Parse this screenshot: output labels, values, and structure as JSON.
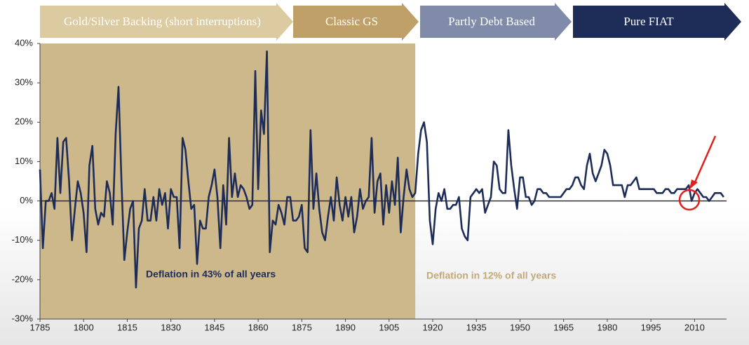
{
  "chart_data": {
    "type": "line",
    "banners": [
      {
        "text": "Gold/Silver Backing (short interruptions)",
        "color": "#dccaa0"
      },
      {
        "text": "Classic GS",
        "color": "#bfa068"
      },
      {
        "text": "Partly Debt Based",
        "color": "#7f8ba8"
      },
      {
        "text": "Pure FIAT",
        "color": "#1e2c58"
      }
    ],
    "regions": [
      {
        "from": 1785,
        "to": 1914,
        "color": "#cdb88c"
      }
    ],
    "annotations": [
      {
        "text": "Deflation in 43% of all years",
        "color": "#1e2c58"
      },
      {
        "text": "Deflation in 12% of all years",
        "color": "#c2a976"
      }
    ],
    "x": [
      1785,
      1786,
      1787,
      1788,
      1789,
      1790,
      1791,
      1792,
      1793,
      1794,
      1795,
      1796,
      1797,
      1798,
      1799,
      1800,
      1801,
      1802,
      1803,
      1804,
      1805,
      1806,
      1807,
      1808,
      1809,
      1810,
      1811,
      1812,
      1813,
      1814,
      1815,
      1816,
      1817,
      1818,
      1819,
      1820,
      1821,
      1822,
      1823,
      1824,
      1825,
      1826,
      1827,
      1828,
      1829,
      1830,
      1831,
      1832,
      1833,
      1834,
      1835,
      1836,
      1837,
      1838,
      1839,
      1840,
      1841,
      1842,
      1843,
      1844,
      1845,
      1846,
      1847,
      1848,
      1849,
      1850,
      1851,
      1852,
      1853,
      1854,
      1855,
      1856,
      1857,
      1858,
      1859,
      1860,
      1861,
      1862,
      1863,
      1864,
      1865,
      1866,
      1867,
      1868,
      1869,
      1870,
      1871,
      1872,
      1873,
      1874,
      1875,
      1876,
      1877,
      1878,
      1879,
      1880,
      1881,
      1882,
      1883,
      1884,
      1885,
      1886,
      1887,
      1888,
      1889,
      1890,
      1891,
      1892,
      1893,
      1894,
      1895,
      1896,
      1897,
      1898,
      1899,
      1900,
      1901,
      1902,
      1903,
      1904,
      1905,
      1906,
      1907,
      1908,
      1909,
      1910,
      1911,
      1912,
      1913,
      1914,
      1915,
      1916,
      1917,
      1918,
      1919,
      1920,
      1921,
      1922,
      1923,
      1924,
      1925,
      1926,
      1927,
      1928,
      1929,
      1930,
      1931,
      1932,
      1933,
      1934,
      1935,
      1936,
      1937,
      1938,
      1939,
      1940,
      1941,
      1942,
      1943,
      1944,
      1945,
      1946,
      1947,
      1948,
      1949,
      1950,
      1951,
      1952,
      1953,
      1954,
      1955,
      1956,
      1957,
      1958,
      1959,
      1960,
      1961,
      1962,
      1963,
      1964,
      1965,
      1966,
      1967,
      1968,
      1969,
      1970,
      1971,
      1972,
      1973,
      1974,
      1975,
      1976,
      1977,
      1978,
      1979,
      1980,
      1981,
      1982,
      1983,
      1984,
      1985,
      1986,
      1987,
      1988,
      1989,
      1990,
      1991,
      1992,
      1993,
      1994,
      1995,
      1996,
      1997,
      1998,
      1999,
      2000,
      2001,
      2002,
      2003,
      2004,
      2005,
      2006,
      2007,
      2008,
      2009,
      2010,
      2011,
      2012,
      2013,
      2014,
      2015,
      2016,
      2017,
      2018,
      2019,
      2020
    ],
    "series": [
      {
        "color": "#1e2c58",
        "values": [
          8,
          -12,
          0,
          0,
          2,
          -2,
          16,
          2,
          15,
          16,
          5,
          -10,
          -2,
          5,
          2,
          -3,
          -13,
          9,
          14,
          -2,
          -6,
          -3,
          -4,
          5,
          2,
          -6,
          17,
          29,
          5,
          -15,
          -8,
          -2,
          0,
          -22,
          -7,
          -5,
          3,
          -5,
          -5,
          1,
          -5,
          3,
          -1,
          2,
          -7,
          3,
          1,
          1,
          -12,
          16,
          13,
          5,
          -2,
          -1,
          -16,
          -5,
          -7,
          -7,
          1,
          4,
          8,
          1,
          -12,
          4,
          -6,
          16,
          1,
          7,
          1,
          4,
          3,
          1,
          -2,
          -1,
          33,
          3,
          23,
          17,
          38,
          -13,
          -5,
          -6,
          -1,
          -3,
          -6,
          1,
          1,
          -5,
          -5,
          -4,
          -1,
          -12,
          -13,
          18,
          -2,
          7,
          -2,
          -8,
          -10,
          -4,
          1,
          -5,
          6,
          -1,
          -5,
          1,
          -4,
          1,
          -8,
          -4,
          3,
          -2,
          0,
          1,
          16,
          -3,
          5,
          7,
          -6,
          4,
          -3,
          5,
          -1,
          11,
          -8,
          1,
          8,
          3,
          1,
          2,
          12,
          18,
          20,
          15,
          -5,
          -11,
          -2,
          2,
          0,
          3,
          -2,
          -2,
          -1,
          -1,
          1,
          -7,
          -9,
          -10,
          1,
          2,
          3,
          2,
          3,
          -3,
          -1,
          1,
          10,
          9,
          3,
          2,
          2,
          18,
          9,
          3,
          -2,
          6,
          6,
          1,
          1,
          -1,
          0,
          3,
          3,
          2,
          2,
          1,
          1,
          1,
          1,
          1,
          2,
          3,
          3,
          4,
          6,
          6,
          4,
          3,
          9,
          12,
          7,
          5,
          7,
          9,
          13,
          12,
          9,
          4,
          4,
          4,
          4,
          1,
          4,
          4,
          5,
          6,
          3,
          3,
          3,
          3,
          3,
          3,
          2,
          2,
          2,
          3,
          3,
          2,
          2,
          3,
          3,
          3,
          3,
          4,
          0,
          2,
          3,
          2,
          1,
          1,
          0,
          1,
          2,
          2,
          2,
          1
        ]
      }
    ],
    "xlim": [
      1785,
      2021
    ],
    "xticks": [
      1785,
      1800,
      1815,
      1830,
      1845,
      1860,
      1875,
      1890,
      1905,
      1920,
      1935,
      1950,
      1965,
      1980,
      1995,
      2010
    ],
    "ylim": [
      -30,
      40
    ],
    "yticks": [
      {
        "value": -30,
        "label": "-30%"
      },
      {
        "value": -20,
        "label": "-20%"
      },
      {
        "value": -10,
        "label": "-10%"
      },
      {
        "value": 0,
        "label": "0%"
      },
      {
        "value": 10,
        "label": "10%"
      },
      {
        "value": 20,
        "label": "20%"
      },
      {
        "value": 30,
        "label": "30%"
      },
      {
        "value": 40,
        "label": "40%"
      }
    ]
  }
}
